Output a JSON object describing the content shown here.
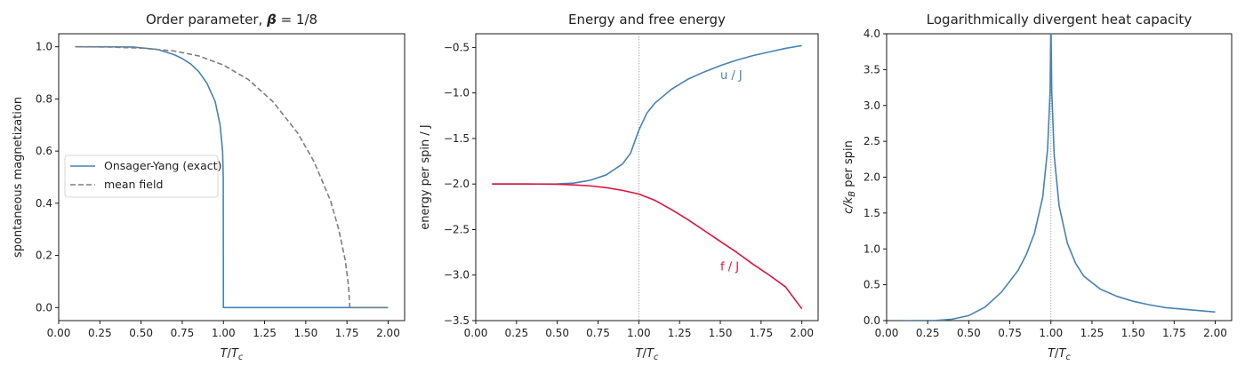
{
  "chart_data": [
    {
      "type": "line",
      "title": "Order parameter, β = 1/8",
      "xlabel": "T/Tc",
      "ylabel": "spontaneous magnetization",
      "xlim": [
        0.0,
        2.1
      ],
      "ylim": [
        -0.05,
        1.05
      ],
      "xticks": [
        "0.00",
        "0.25",
        "0.50",
        "0.75",
        "1.00",
        "1.25",
        "1.50",
        "1.75",
        "2.00"
      ],
      "yticks": [
        "0.0",
        "0.2",
        "0.4",
        "0.6",
        "0.8",
        "1.0"
      ],
      "grid": false,
      "legend": {
        "position": "center-left"
      },
      "series": [
        {
          "name": "Onsager-Yang (exact)",
          "color": "#4682b4",
          "dash": "solid",
          "x": [
            0.1,
            0.3,
            0.45,
            0.6,
            0.7,
            0.75,
            0.8,
            0.85,
            0.9,
            0.95,
            0.98,
            0.995,
            0.999,
            1.0,
            1.0,
            1.5,
            2.0
          ],
          "y": [
            1.0,
            1.0,
            0.999,
            0.99,
            0.97,
            0.955,
            0.935,
            0.905,
            0.86,
            0.79,
            0.7,
            0.6,
            0.5,
            0.0,
            0.0,
            0.0,
            0.0
          ]
        },
        {
          "name": "mean field",
          "color": "#7f7f7f",
          "dash": "dashed",
          "x": [
            0.1,
            0.3,
            0.5,
            0.7,
            0.85,
            1.0,
            1.15,
            1.3,
            1.45,
            1.55,
            1.65,
            1.7,
            1.74,
            1.76,
            1.767,
            1.767,
            2.0
          ],
          "y": [
            1.0,
            0.999,
            0.995,
            0.984,
            0.965,
            0.93,
            0.875,
            0.79,
            0.67,
            0.56,
            0.41,
            0.3,
            0.18,
            0.08,
            0.0,
            0.0,
            0.0
          ]
        }
      ]
    },
    {
      "type": "line",
      "title": "Energy and free energy",
      "xlabel": "T/Tc",
      "ylabel": "energy per spin / J",
      "xlim": [
        0.0,
        2.1
      ],
      "ylim": [
        -3.5,
        -0.35
      ],
      "xticks": [
        "0.00",
        "0.25",
        "0.50",
        "0.75",
        "1.00",
        "1.25",
        "1.50",
        "1.75",
        "2.00"
      ],
      "yticks": [
        "−0.5",
        "−1.0",
        "−1.5",
        "−2.0",
        "−2.5",
        "−3.0",
        "−3.5"
      ],
      "grid": false,
      "vline_x": 1.0,
      "annotations": [
        {
          "text": "u / J",
          "x": 1.5,
          "y": -0.8,
          "color": "#4682b4"
        },
        {
          "text": "f / J",
          "x": 1.5,
          "y": -2.9,
          "color": "#dc143c"
        }
      ],
      "series": [
        {
          "name": "u / J",
          "color": "#4682b4",
          "dash": "solid",
          "x": [
            0.1,
            0.3,
            0.5,
            0.6,
            0.7,
            0.8,
            0.9,
            0.95,
            1.0,
            1.05,
            1.1,
            1.2,
            1.3,
            1.4,
            1.5,
            1.6,
            1.7,
            1.8,
            1.9,
            2.0
          ],
          "y": [
            -2.0,
            -2.0,
            -1.998,
            -1.99,
            -1.96,
            -1.9,
            -1.78,
            -1.66,
            -1.41,
            -1.22,
            -1.11,
            -0.96,
            -0.85,
            -0.77,
            -0.7,
            -0.64,
            -0.59,
            -0.55,
            -0.51,
            -0.48
          ]
        },
        {
          "name": "f / J",
          "color": "#dc143c",
          "dash": "solid",
          "x": [
            0.1,
            0.3,
            0.5,
            0.6,
            0.7,
            0.8,
            0.9,
            1.0,
            1.1,
            1.2,
            1.3,
            1.4,
            1.5,
            1.6,
            1.7,
            1.8,
            1.9,
            2.0
          ],
          "y": [
            -2.0,
            -2.0,
            -2.003,
            -2.01,
            -2.02,
            -2.04,
            -2.07,
            -2.11,
            -2.18,
            -2.28,
            -2.39,
            -2.51,
            -2.63,
            -2.75,
            -2.88,
            -3.0,
            -3.13,
            -3.37
          ]
        }
      ]
    },
    {
      "type": "line",
      "title": "Logarithmically divergent heat capacity",
      "xlabel": "T/Tc",
      "ylabel": "c/kB per spin",
      "xlim": [
        0.0,
        2.1
      ],
      "ylim": [
        0.0,
        4.0
      ],
      "xticks": [
        "0.00",
        "0.25",
        "0.50",
        "0.75",
        "1.00",
        "1.25",
        "1.50",
        "1.75",
        "2.00"
      ],
      "yticks": [
        "0.0",
        "0.5",
        "1.0",
        "1.5",
        "2.0",
        "2.5",
        "3.0",
        "3.5",
        "4.0"
      ],
      "grid": false,
      "vline_x": 1.0,
      "series": [
        {
          "name": "",
          "color": "#4682b4",
          "dash": "solid",
          "x": [
            0.1,
            0.3,
            0.4,
            0.5,
            0.6,
            0.7,
            0.8,
            0.85,
            0.9,
            0.95,
            0.98,
            0.995,
            0.999,
            1.0,
            1.001,
            1.005,
            1.02,
            1.05,
            1.1,
            1.15,
            1.2,
            1.3,
            1.4,
            1.5,
            1.6,
            1.7,
            1.8,
            1.9,
            2.0
          ],
          "y": [
            0.0,
            0.002,
            0.02,
            0.07,
            0.19,
            0.4,
            0.7,
            0.92,
            1.22,
            1.72,
            2.4,
            3.2,
            4.0,
            4.0,
            4.0,
            3.2,
            2.3,
            1.6,
            1.08,
            0.8,
            0.62,
            0.44,
            0.34,
            0.27,
            0.22,
            0.18,
            0.16,
            0.14,
            0.12
          ]
        }
      ]
    }
  ],
  "labels": {
    "panel1_title_prefix": "Order parameter, ",
    "panel1_title_beta": "β",
    "panel1_title_suffix": " = 1/8",
    "x_T": "T",
    "x_sub": "c",
    "panel3_y_c": "c/k",
    "panel3_y_sub": "B",
    "panel3_y_rest": " per spin",
    "legend_exact": "Onsager-Yang (exact)",
    "legend_mf": "mean field"
  }
}
